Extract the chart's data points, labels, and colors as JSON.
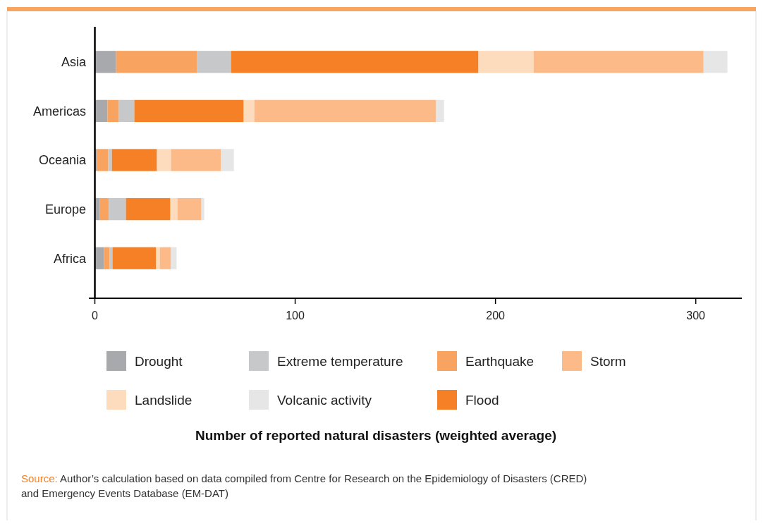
{
  "chart_data": {
    "type": "bar",
    "orientation": "horizontal",
    "stacked": true,
    "categories": [
      "Asia",
      "Americas",
      "Oceania",
      "Europe",
      "Africa"
    ],
    "series": [
      {
        "name": "Drought",
        "color": "#a7a9ac",
        "values": [
          10.6,
          6.3,
          1.1,
          2.5,
          4.6
        ]
      },
      {
        "name": "Earthquake",
        "color": "#f9a360",
        "values": [
          40.5,
          5.7,
          5.6,
          4.5,
          2.8
        ]
      },
      {
        "name": "Extreme temperature",
        "color": "#c7c8ca",
        "values": [
          16.9,
          7.7,
          1.8,
          8.5,
          1.4
        ]
      },
      {
        "name": "Flood",
        "color": "#f58025",
        "values": [
          123.5,
          54.6,
          22.5,
          22.2,
          21.8
        ]
      },
      {
        "name": "Landslide",
        "color": "#fddbbd",
        "values": [
          27.5,
          5.3,
          7.0,
          3.5,
          1.8
        ]
      },
      {
        "name": "Storm",
        "color": "#fbba87",
        "values": [
          84.9,
          90.8,
          25.0,
          12.0,
          5.6
        ]
      },
      {
        "name": "Volcanic activity",
        "color": "#e6e6e6",
        "values": [
          11.9,
          3.9,
          6.4,
          1.4,
          2.8
        ]
      }
    ],
    "xlim": [
      -3,
      323
    ],
    "xticks": [
      0,
      100,
      200,
      300
    ],
    "legend": "bottom",
    "grid": false,
    "annotations": [
      "Number of reported natural disasters (weighted average)",
      "Source: Author’s calculation based on data compiled from Centre for Research on the Epidemiology of Disasters (CRED) and Emergency Events Database (EM-DAT)"
    ]
  }
}
